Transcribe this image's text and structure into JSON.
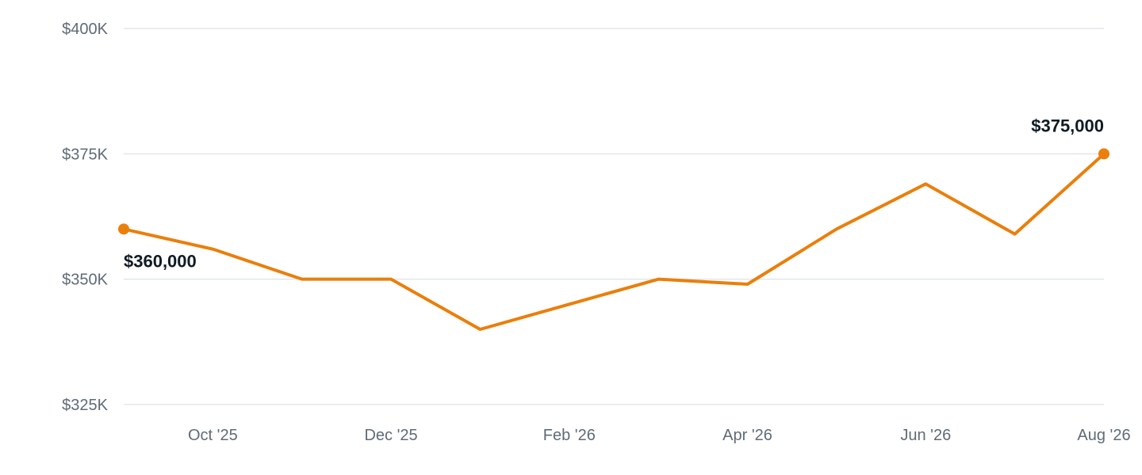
{
  "chart_data": {
    "type": "line",
    "title": "",
    "xlabel": "",
    "ylabel": "",
    "x": [
      "2025-09",
      "2025-10",
      "2025-11",
      "2025-12",
      "2026-01",
      "2026-02",
      "2026-03",
      "2026-04",
      "2026-05",
      "2026-06",
      "2026-07",
      "2026-08"
    ],
    "series": [
      {
        "values": [
          360000,
          356000,
          350000,
          350000,
          340000,
          345000,
          350000,
          349000,
          360000,
          369000,
          359000,
          375000
        ],
        "color": "#ea7f0b"
      }
    ],
    "ylim": [
      325000,
      400000
    ],
    "y_ticks": [
      {
        "value": 325000,
        "label": "$325K"
      },
      {
        "value": 350000,
        "label": "$350K"
      },
      {
        "value": 375000,
        "label": "$375K"
      },
      {
        "value": 400000,
        "label": "$400K"
      }
    ],
    "x_ticks": [
      {
        "x": "2025-10",
        "label": "Oct '25"
      },
      {
        "x": "2025-12",
        "label": "Dec '25"
      },
      {
        "x": "2026-02",
        "label": "Feb '26"
      },
      {
        "x": "2026-04",
        "label": "Apr '26"
      },
      {
        "x": "2026-06",
        "label": "Jun '26"
      },
      {
        "x": "2026-08",
        "label": "Aug '26"
      }
    ],
    "annotations": [
      {
        "x": "2025-09",
        "label": "$360,000",
        "position": "below-right"
      },
      {
        "x": "2026-08",
        "label": "$375,000",
        "position": "above-left"
      }
    ],
    "grid": true,
    "legend": "none"
  }
}
